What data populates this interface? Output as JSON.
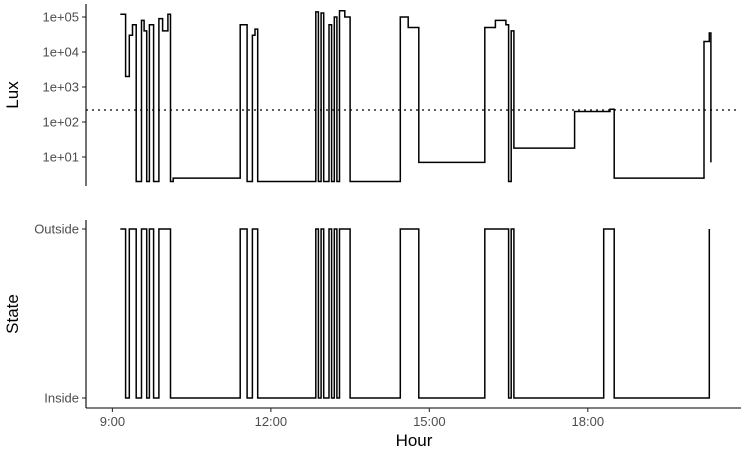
{
  "chart_data": [
    {
      "type": "line",
      "step": true,
      "panel": "lux",
      "ylabel": "Lux",
      "xlabel": "",
      "yscale": "log10",
      "ylim": [
        1.5,
        200000
      ],
      "yticks": [
        10,
        100,
        1000,
        10000,
        100000
      ],
      "ytick_labels": [
        "1e+01",
        "1e+02",
        "1e+03",
        "1e+04",
        "1e+05"
      ],
      "xlim": [
        8.5,
        20.9
      ],
      "reference_line": {
        "y": 220,
        "style": "dotted"
      },
      "grid": false,
      "legend": "none",
      "x": [
        9.15,
        9.25,
        9.32,
        9.38,
        9.45,
        9.55,
        9.6,
        9.65,
        9.7,
        9.78,
        9.88,
        9.95,
        10.05,
        10.1,
        10.15,
        11.4,
        11.42,
        11.55,
        11.65,
        11.7,
        11.75,
        12.8,
        12.85,
        12.9,
        12.95,
        13.0,
        13.1,
        13.15,
        13.2,
        13.25,
        13.3,
        13.4,
        13.5,
        14.45,
        14.6,
        14.8,
        14.9,
        16.05,
        16.25,
        16.45,
        16.5,
        16.55,
        16.6,
        17.65,
        17.75,
        18.3,
        18.42,
        18.5,
        20.1,
        20.2,
        20.3,
        20.33
      ],
      "y": [
        120000,
        2000,
        30000,
        60000,
        2,
        80000,
        40000,
        2,
        60000,
        2,
        90000,
        40000,
        120000,
        2,
        2.5,
        2.5,
        60000,
        2,
        30000,
        45000,
        2,
        2,
        140000,
        2,
        130000,
        2,
        60000,
        2,
        100000,
        2,
        150000,
        100000,
        2,
        100000,
        50000,
        7,
        7,
        50000,
        80000,
        60000,
        2,
        40000,
        18,
        18,
        200,
        200,
        230,
        2.5,
        2.5,
        20000,
        35000,
        7
      ]
    },
    {
      "type": "line",
      "step": true,
      "panel": "state",
      "ylabel": "State",
      "xlabel": "Hour",
      "y_categories": [
        "Inside",
        "Outside"
      ],
      "xlim": [
        8.5,
        20.9
      ],
      "xticks": [
        9,
        12,
        15,
        18
      ],
      "xtick_labels": [
        "9:00",
        "12:00",
        "15:00",
        "18:00"
      ],
      "grid": false,
      "legend": "none",
      "x": [
        9.15,
        9.25,
        9.32,
        9.38,
        9.45,
        9.55,
        9.6,
        9.65,
        9.7,
        9.78,
        9.88,
        9.95,
        10.05,
        10.1,
        11.4,
        11.42,
        11.55,
        11.65,
        11.75,
        12.8,
        12.85,
        12.9,
        12.95,
        13.0,
        13.1,
        13.15,
        13.2,
        13.25,
        13.3,
        13.5,
        14.45,
        14.8,
        16.05,
        16.45,
        16.5,
        16.55,
        16.6,
        18.3,
        18.5,
        20.2,
        20.3
      ],
      "y": [
        "Outside",
        "Inside",
        "Outside",
        "Outside",
        "Inside",
        "Outside",
        "Outside",
        "Inside",
        "Outside",
        "Inside",
        "Outside",
        "Outside",
        "Outside",
        "Inside",
        "Inside",
        "Outside",
        "Inside",
        "Outside",
        "Inside",
        "Inside",
        "Outside",
        "Inside",
        "Outside",
        "Inside",
        "Outside",
        "Inside",
        "Outside",
        "Inside",
        "Outside",
        "Inside",
        "Outside",
        "Inside",
        "Outside",
        "Outside",
        "Inside",
        "Outside",
        "Inside",
        "Outside",
        "Inside",
        "Inside",
        "Outside"
      ]
    }
  ]
}
